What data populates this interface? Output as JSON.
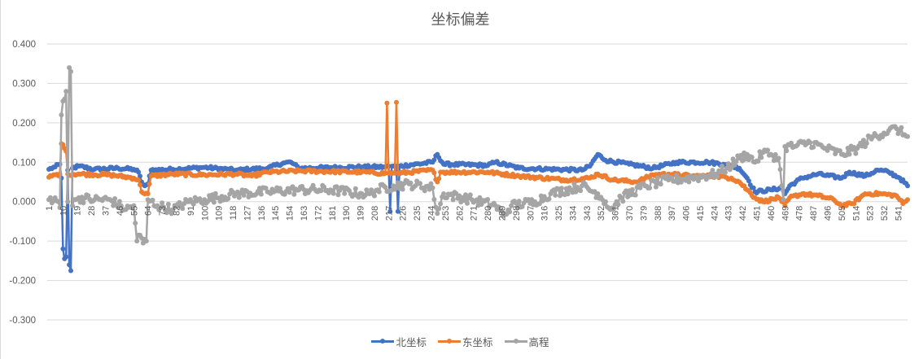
{
  "chart_data": {
    "type": "line",
    "title": "坐标偏差",
    "xlabel": "",
    "ylabel": "",
    "ylim": [
      -0.3,
      0.4
    ],
    "yticks": [
      "0.400",
      "0.300",
      "0.200",
      "0.100",
      "0.000",
      "-0.100",
      "-0.200",
      "-0.300"
    ],
    "ytick_values": [
      0.4,
      0.3,
      0.2,
      0.1,
      0.0,
      -0.1,
      -0.2,
      -0.3
    ],
    "x_count": 547,
    "xtick_step": 9,
    "xticks": [
      "1",
      "10",
      "19",
      "28",
      "37",
      "46",
      "55",
      "64",
      "73",
      "82",
      "91",
      "100",
      "109",
      "118",
      "127",
      "136",
      "145",
      "154",
      "163",
      "172",
      "181",
      "190",
      "199",
      "208",
      "217",
      "226",
      "235",
      "244",
      "253",
      "262",
      "271",
      "280",
      "289",
      "298",
      "307",
      "316",
      "325",
      "334",
      "343",
      "352",
      "361",
      "370",
      "379",
      "388",
      "397",
      "406",
      "415",
      "424",
      "433",
      "442",
      "451",
      "460",
      "469",
      "478",
      "487",
      "496",
      "505",
      "514",
      "523",
      "532",
      "541"
    ],
    "grid": true,
    "legend_position": "bottom",
    "series": [
      {
        "name": "北坐标",
        "color": "#4472c4",
        "anchors": [
          [
            1,
            0.082
          ],
          [
            5,
            0.088
          ],
          [
            8,
            0.095
          ],
          [
            9,
            0.06
          ],
          [
            10,
            -0.12
          ],
          [
            11,
            -0.145
          ],
          [
            12,
            -0.14
          ],
          [
            13,
            0.08
          ],
          [
            14,
            -0.16
          ],
          [
            15,
            -0.175
          ],
          [
            16,
            0.085
          ],
          [
            20,
            0.09
          ],
          [
            30,
            0.082
          ],
          [
            45,
            0.085
          ],
          [
            55,
            0.082
          ],
          [
            58,
            0.075
          ],
          [
            60,
            0.05
          ],
          [
            62,
            0.04
          ],
          [
            64,
            0.045
          ],
          [
            66,
            0.08
          ],
          [
            80,
            0.082
          ],
          [
            100,
            0.087
          ],
          [
            120,
            0.08
          ],
          [
            140,
            0.085
          ],
          [
            150,
            0.098
          ],
          [
            155,
            0.1
          ],
          [
            160,
            0.085
          ],
          [
            200,
            0.088
          ],
          [
            215,
            0.088
          ],
          [
            217,
            0.09
          ],
          [
            218,
            -0.025
          ],
          [
            219,
            0.09
          ],
          [
            222,
            0.09
          ],
          [
            223,
            -0.025
          ],
          [
            224,
            0.09
          ],
          [
            245,
            0.1
          ],
          [
            248,
            0.12
          ],
          [
            252,
            0.095
          ],
          [
            280,
            0.092
          ],
          [
            285,
            0.1
          ],
          [
            300,
            0.085
          ],
          [
            340,
            0.08
          ],
          [
            345,
            0.09
          ],
          [
            350,
            0.12
          ],
          [
            355,
            0.105
          ],
          [
            370,
            0.095
          ],
          [
            385,
            0.085
          ],
          [
            400,
            0.1
          ],
          [
            420,
            0.1
          ],
          [
            430,
            0.095
          ],
          [
            440,
            0.085
          ],
          [
            445,
            0.06
          ],
          [
            450,
            0.025
          ],
          [
            460,
            0.03
          ],
          [
            467,
            0.035
          ],
          [
            469,
            0.02
          ],
          [
            472,
            0.04
          ],
          [
            480,
            0.06
          ],
          [
            490,
            0.07
          ],
          [
            505,
            0.06
          ],
          [
            510,
            0.075
          ],
          [
            520,
            0.065
          ],
          [
            528,
            0.08
          ],
          [
            535,
            0.075
          ],
          [
            542,
            0.06
          ],
          [
            547,
            0.04
          ]
        ],
        "noise": 0.004
      },
      {
        "name": "东坐标",
        "color": "#ed7d31",
        "anchors": [
          [
            1,
            0.062
          ],
          [
            5,
            0.068
          ],
          [
            8,
            0.07
          ],
          [
            9,
            0.147
          ],
          [
            11,
            0.135
          ],
          [
            12,
            0.128
          ],
          [
            13,
            0.07
          ],
          [
            20,
            0.07
          ],
          [
            40,
            0.068
          ],
          [
            55,
            0.06
          ],
          [
            58,
            0.055
          ],
          [
            60,
            0.025
          ],
          [
            64,
            0.02
          ],
          [
            66,
            0.065
          ],
          [
            80,
            0.07
          ],
          [
            100,
            0.068
          ],
          [
            120,
            0.07
          ],
          [
            130,
            0.065
          ],
          [
            140,
            0.075
          ],
          [
            160,
            0.078
          ],
          [
            200,
            0.075
          ],
          [
            215,
            0.072
          ],
          [
            216,
            0.25
          ],
          [
            217,
            0.072
          ],
          [
            221,
            0.072
          ],
          [
            222,
            0.252
          ],
          [
            223,
            0.072
          ],
          [
            245,
            0.08
          ],
          [
            248,
            0.05
          ],
          [
            250,
            0.075
          ],
          [
            280,
            0.075
          ],
          [
            300,
            0.065
          ],
          [
            330,
            0.055
          ],
          [
            345,
            0.06
          ],
          [
            350,
            0.07
          ],
          [
            360,
            0.055
          ],
          [
            375,
            0.05
          ],
          [
            385,
            0.068
          ],
          [
            395,
            0.07
          ],
          [
            410,
            0.065
          ],
          [
            425,
            0.065
          ],
          [
            435,
            0.06
          ],
          [
            440,
            0.05
          ],
          [
            445,
            0.03
          ],
          [
            450,
            0.01
          ],
          [
            455,
            0.0
          ],
          [
            465,
            0.01
          ],
          [
            467,
            0.0
          ],
          [
            469,
            -0.01
          ],
          [
            472,
            0.01
          ],
          [
            480,
            0.02
          ],
          [
            490,
            0.015
          ],
          [
            500,
            0.005
          ],
          [
            505,
            -0.01
          ],
          [
            512,
            -0.005
          ],
          [
            520,
            0.02
          ],
          [
            530,
            0.02
          ],
          [
            540,
            0.015
          ],
          [
            544,
            -0.005
          ],
          [
            547,
            0.005
          ]
        ],
        "noise": 0.004
      },
      {
        "name": "高程",
        "color": "#a5a5a5",
        "anchors": [
          [
            1,
            0.005
          ],
          [
            5,
            0.01
          ],
          [
            7,
            0.0
          ],
          [
            8,
            -0.015
          ],
          [
            9,
            0.22
          ],
          [
            10,
            0.255
          ],
          [
            11,
            0.26
          ],
          [
            12,
            0.28
          ],
          [
            13,
            0.0
          ],
          [
            14,
            0.34
          ],
          [
            15,
            0.33
          ],
          [
            16,
            -0.01
          ],
          [
            18,
            0.005
          ],
          [
            20,
            0.01
          ],
          [
            30,
            0.005
          ],
          [
            40,
            0.005
          ],
          [
            50,
            -0.02
          ],
          [
            55,
            -0.01
          ],
          [
            57,
            -0.1
          ],
          [
            59,
            -0.085
          ],
          [
            61,
            -0.105
          ],
          [
            63,
            -0.1
          ],
          [
            64,
            0.005
          ],
          [
            70,
            -0.01
          ],
          [
            80,
            -0.02
          ],
          [
            90,
            0.0
          ],
          [
            100,
            0.005
          ],
          [
            120,
            0.02
          ],
          [
            140,
            0.025
          ],
          [
            160,
            0.03
          ],
          [
            180,
            0.03
          ],
          [
            200,
            0.02
          ],
          [
            205,
            0.02
          ],
          [
            210,
            0.03
          ],
          [
            220,
            0.04
          ],
          [
            230,
            0.045
          ],
          [
            245,
            0.035
          ],
          [
            248,
            -0.03
          ],
          [
            252,
            0.02
          ],
          [
            270,
            0.005
          ],
          [
            285,
            -0.01
          ],
          [
            290,
            -0.035
          ],
          [
            295,
            -0.01
          ],
          [
            310,
            0.0
          ],
          [
            320,
            0.02
          ],
          [
            340,
            0.04
          ],
          [
            350,
            0.02
          ],
          [
            355,
            0.0
          ],
          [
            358,
            -0.02
          ],
          [
            365,
            0.01
          ],
          [
            380,
            0.04
          ],
          [
            395,
            0.055
          ],
          [
            410,
            0.06
          ],
          [
            425,
            0.07
          ],
          [
            432,
            0.085
          ],
          [
            440,
            0.11
          ],
          [
            445,
            0.12
          ],
          [
            450,
            0.1
          ],
          [
            455,
            0.125
          ],
          [
            460,
            0.12
          ],
          [
            465,
            0.11
          ],
          [
            467,
            0.04
          ],
          [
            468,
            0.005
          ],
          [
            469,
            0.14
          ],
          [
            475,
            0.14
          ],
          [
            485,
            0.15
          ],
          [
            495,
            0.135
          ],
          [
            505,
            0.12
          ],
          [
            515,
            0.135
          ],
          [
            525,
            0.165
          ],
          [
            535,
            0.18
          ],
          [
            540,
            0.185
          ],
          [
            545,
            0.17
          ],
          [
            547,
            0.165
          ]
        ],
        "noise": 0.012
      }
    ]
  }
}
